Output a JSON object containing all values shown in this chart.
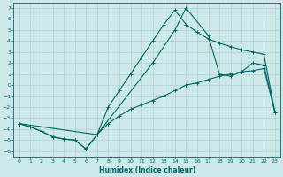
{
  "xlabel": "Humidex (Indice chaleur)",
  "xlim": [
    -0.5,
    23.5
  ],
  "ylim": [
    -6.5,
    7.5
  ],
  "bg_color": "#cce8e8",
  "grid_color": "#b0d0d0",
  "line_color": "#006666",
  "line1_x": [
    0,
    1,
    2,
    3,
    4,
    5,
    6,
    7,
    8,
    9,
    10,
    11,
    12,
    13,
    14,
    15,
    16,
    17,
    18,
    19,
    20,
    21,
    22,
    23
  ],
  "line1_y": [
    -3.5,
    -3.8,
    -4.2,
    -4.7,
    -4.9,
    -5.0,
    -5.8,
    -4.5,
    -3.5,
    -2.8,
    -2.2,
    -1.8,
    -1.4,
    -1.0,
    -0.5,
    0.0,
    0.2,
    0.5,
    0.8,
    1.0,
    1.2,
    1.3,
    1.5,
    -2.5
  ],
  "line2_x": [
    0,
    1,
    2,
    3,
    4,
    5,
    6,
    7,
    8,
    9,
    10,
    11,
    12,
    13,
    14,
    15,
    16,
    17,
    18,
    19,
    20,
    21,
    22,
    23
  ],
  "line2_y": [
    -3.5,
    -3.8,
    -4.2,
    -4.7,
    -4.9,
    -5.0,
    -5.8,
    -4.5,
    -2.0,
    -0.5,
    1.0,
    2.5,
    4.0,
    5.5,
    6.8,
    5.5,
    4.8,
    4.2,
    3.8,
    3.5,
    3.2,
    3.0,
    2.8,
    -2.5
  ],
  "line3_x": [
    0,
    7,
    12,
    14,
    15,
    17,
    18,
    19,
    20,
    21,
    22,
    23
  ],
  "line3_y": [
    -3.5,
    -4.5,
    2.0,
    5.0,
    7.0,
    4.5,
    1.0,
    0.8,
    1.2,
    2.0,
    1.8,
    -2.5
  ],
  "xticks": [
    0,
    1,
    2,
    3,
    4,
    5,
    6,
    7,
    8,
    9,
    10,
    11,
    12,
    13,
    14,
    15,
    16,
    17,
    18,
    19,
    20,
    21,
    22,
    23
  ],
  "yticks": [
    -6,
    -5,
    -4,
    -3,
    -2,
    -1,
    0,
    1,
    2,
    3,
    4,
    5,
    6,
    7
  ]
}
